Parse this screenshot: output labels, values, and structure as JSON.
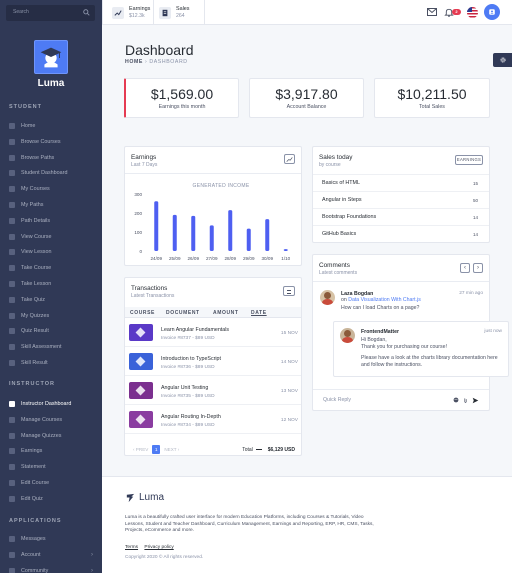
{
  "sidebar": {
    "search_placeholder": "Search",
    "brand": "Luma",
    "sections": [
      {
        "title": "STUDENT",
        "items": [
          "Home",
          "Browse Courses",
          "Browse Paths",
          "Student Dashboard",
          "My Courses",
          "My Paths",
          "Path Details",
          "View Course",
          "View Lesson",
          "Take Course",
          "Take Lesson",
          "Take Quiz",
          "My Quizzes",
          "Quiz Result",
          "Skill Assessment",
          "Skill Result"
        ]
      },
      {
        "title": "INSTRUCTOR",
        "items": [
          "Instructor Dashboard",
          "Manage Courses",
          "Manage Quizzes",
          "Earnings",
          "Statement",
          "Edit Course",
          "Edit Quiz"
        ]
      },
      {
        "title": "APPLICATIONS",
        "items": [
          "Messages",
          "Account",
          "Community"
        ]
      }
    ],
    "active_item": "Instructor Dashboard"
  },
  "topbar": {
    "earnings_label": "Earnings",
    "earnings_value": "$12.3k",
    "sales_label": "Sales",
    "sales_value": "264",
    "notification_count": "2"
  },
  "page": {
    "title": "Dashboard",
    "breadcrumb_home": "HOME",
    "breadcrumb_current": "DASHBOARD"
  },
  "kpis": [
    {
      "value": "$1,569.00",
      "label": "Earnings this month"
    },
    {
      "value": "$3,917.80",
      "label": "Account Balance"
    },
    {
      "value": "$10,211.50",
      "label": "Total Sales"
    }
  ],
  "earnings_card": {
    "title": "Earnings",
    "subtitle": "Last 7 Days"
  },
  "chart_data": {
    "type": "bar",
    "title": "GENERATED INCOME",
    "categories": [
      "24/09",
      "25/09",
      "26/09",
      "27/09",
      "28/09",
      "29/09",
      "30/09",
      "1/10"
    ],
    "values": [
      262,
      190,
      185,
      135,
      215,
      118,
      168,
      10
    ],
    "ylim": [
      0,
      300
    ],
    "yticks": [
      0,
      100,
      200,
      300
    ],
    "color": "#4e5ff1"
  },
  "sales_today": {
    "title": "Sales today",
    "subtitle": "by course",
    "button": "EARNINGS",
    "rows": [
      {
        "name": "Basics of HTML",
        "count": "15"
      },
      {
        "name": "Angular in Steps",
        "count": "50"
      },
      {
        "name": "Bootstrap Foundations",
        "count": "14"
      },
      {
        "name": "GitHub Basics",
        "count": "14"
      }
    ]
  },
  "transactions": {
    "title": "Transactions",
    "subtitle": "Latest Transactions",
    "columns": [
      "COURSE",
      "DOCUMENT",
      "AMOUNT",
      "DATE"
    ],
    "rows": [
      {
        "title": "Learn Angular Fundamentals",
        "invoice": "Invoice #8737 - $89 USD",
        "date": "15 NOV",
        "color": "#5a39c7"
      },
      {
        "title": "Introduction to TypeScript",
        "invoice": "Invoice #8736 - $89 USD",
        "date": "14 NOV",
        "color": "#3a62d9"
      },
      {
        "title": "Angular Unit Testing",
        "invoice": "Invoice #8735 - $89 USD",
        "date": "13 NOV",
        "color": "#7b2f8f"
      },
      {
        "title": "Angular Routing In-Depth",
        "invoice": "Invoice #8734 - $89 USD",
        "date": "12 NOV",
        "color": "#8a3ca0"
      }
    ],
    "prev": "‹ PREV",
    "page": "1",
    "next": "NEXT ›",
    "total_label": "Total",
    "total_value": "$6,129 USD"
  },
  "comments": {
    "title": "Comments",
    "subtitle": "Latest comments",
    "c1_name": "Laza Bogdan",
    "c1_on": "on",
    "c1_link": "Data Visualization With Chart.js",
    "c1_time": "27 min ago",
    "c1_text": "How can I load Charts on a page?",
    "c2_name": "FrontendMatter",
    "c2_time": "just now",
    "c2_line1": "Hi Bogdan,",
    "c2_line2": "Thank you for purchasing our course!",
    "c2_line3": "Please have a look at the charts library documentation here and follow the instructions.",
    "reply_placeholder": "Quick Reply"
  },
  "footer": {
    "brand": "Luma",
    "description": "Luma is a beautifully crafted user interface for modern Education Platforms, including Courses & Tutorials, Video Lessons, Student and Teacher Dashboard, Curriculum Management, Earnings and Reporting, ERP, HR, CMS, Tasks, Projects, eCommerce and more.",
    "terms": "Terms",
    "privacy": "Privacy policy",
    "copyright": "Copyright 2020 © All rights reserved."
  }
}
